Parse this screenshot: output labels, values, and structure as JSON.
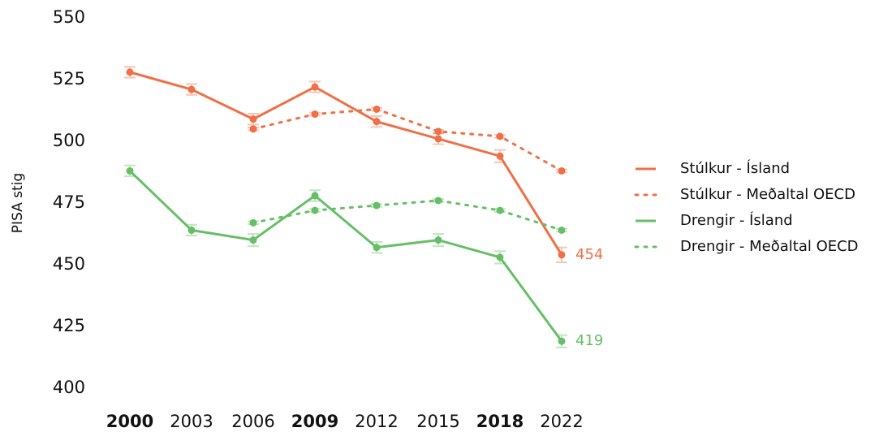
{
  "chart_data": {
    "type": "line",
    "ylabel": "PISA stig",
    "categories": [
      "2000",
      "2003",
      "2006",
      "2009",
      "2012",
      "2015",
      "2018",
      "2022"
    ],
    "bold_categories": [
      true,
      false,
      false,
      true,
      false,
      false,
      true,
      false
    ],
    "series": [
      {
        "name": "Stúlkur - Ísland",
        "color": "#ef7047",
        "dash": "solid",
        "end_label": true,
        "values": [
          528,
          521,
          509,
          522,
          508,
          501,
          494,
          454
        ],
        "errors": [
          2.2,
          2.2,
          2.2,
          2.2,
          2.2,
          2.2,
          2.5,
          3
        ]
      },
      {
        "name": "Stúlkur - Meðaltal OECD",
        "color": "#ef7047",
        "dash": "dotted",
        "end_label": false,
        "values": [
          null,
          null,
          505,
          511,
          513,
          504,
          502,
          488
        ],
        "errors": [
          null,
          null,
          0.6,
          0.6,
          0.6,
          0.6,
          0.6,
          0.6
        ]
      },
      {
        "name": "Drengir - Ísland",
        "color": "#66bf66",
        "dash": "solid",
        "end_label": true,
        "values": [
          488,
          464,
          460,
          478,
          457,
          460,
          453,
          419
        ],
        "errors": [
          2.2,
          2.2,
          2.5,
          2.2,
          2.2,
          2.5,
          2.5,
          2.5
        ]
      },
      {
        "name": "Drengir - Meðaltal OECD",
        "color": "#66bf66",
        "dash": "dotted",
        "end_label": false,
        "values": [
          null,
          null,
          467,
          472,
          474,
          476,
          472,
          464
        ],
        "errors": [
          null,
          null,
          0.6,
          0.6,
          0.6,
          0.6,
          0.6,
          0.6
        ]
      }
    ],
    "ylim": [
      400,
      550
    ],
    "yticks": [
      400,
      425,
      450,
      475,
      500,
      525,
      550
    ],
    "grid": false,
    "legend": "right"
  }
}
